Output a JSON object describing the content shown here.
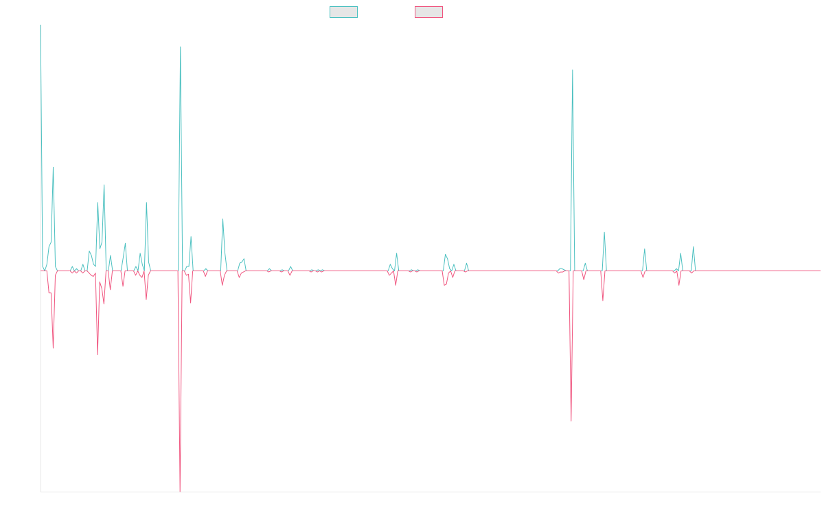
{
  "chart_data": {
    "type": "line",
    "title": "",
    "xlabel": "",
    "ylabel": "",
    "ylim": [
      -1,
      1.115
    ],
    "grid": false,
    "legend": "top-center",
    "series": [
      {
        "label": "",
        "color": "#4bc0c0",
        "fill": "#e6e6e6",
        "values": [
          1.115,
          0.02,
          0,
          0.03,
          0.11,
          0.13,
          0.47,
          0.02,
          0,
          0,
          0,
          0,
          0,
          0,
          0,
          0.02,
          0,
          0.01,
          0,
          0,
          0.03,
          0,
          0,
          0.09,
          0.07,
          0.03,
          0.02,
          0.31,
          0.1,
          0.13,
          0.39,
          0,
          0,
          0.07,
          0,
          0,
          0,
          0,
          0,
          0.06,
          0.125,
          0,
          0,
          0,
          0,
          0.02,
          0,
          0.08,
          0.03,
          0,
          0.31,
          0.04,
          0,
          0,
          0,
          0,
          0,
          0,
          0,
          0,
          0,
          0,
          0,
          0,
          0,
          0,
          1.015,
          0,
          0,
          0.02,
          0.02,
          0.155,
          0,
          0,
          0,
          0,
          0,
          0,
          0.01,
          0,
          0,
          0,
          0,
          0,
          0,
          0,
          0.235,
          0.08,
          0,
          0,
          0,
          0,
          0,
          0,
          0.035,
          0.04,
          0.055,
          0,
          0,
          0,
          0,
          0,
          0,
          0,
          0,
          0,
          0,
          0,
          0.01,
          0,
          0,
          0,
          0,
          0,
          0.005,
          0,
          0,
          0,
          0.02,
          0,
          0,
          0,
          0,
          0,
          0,
          0,
          0,
          0,
          0.005,
          0,
          0,
          0.005,
          0,
          0.005,
          0,
          0,
          0,
          0,
          0,
          0,
          0,
          0,
          0,
          0,
          0,
          0,
          0,
          0,
          0,
          0,
          0,
          0,
          0,
          0,
          0,
          0,
          0,
          0,
          0,
          0,
          0,
          0,
          0,
          0,
          0,
          0.03,
          0.01,
          0,
          0.08,
          0,
          0,
          0,
          0,
          0,
          0,
          0.005,
          0,
          0,
          0.005,
          0,
          0,
          0,
          0,
          0,
          0,
          0,
          0,
          0,
          0,
          0,
          0,
          0.075,
          0.055,
          0.01,
          0,
          0.03,
          0,
          0,
          0,
          0,
          0,
          0.035,
          0,
          0,
          0,
          0,
          0,
          0,
          0,
          0,
          0,
          0,
          0,
          0,
          0,
          0,
          0,
          0,
          0,
          0,
          0,
          0,
          0,
          0,
          0,
          0,
          0,
          0,
          0,
          0,
          0,
          0,
          0,
          0,
          0,
          0,
          0,
          0,
          0,
          0,
          0,
          0,
          0,
          0,
          0,
          0.01,
          0.01,
          0.005,
          0,
          0,
          0,
          0.91,
          0,
          0,
          0,
          0,
          0,
          0.035,
          0,
          0,
          0,
          0,
          0,
          0,
          0,
          0,
          0.175,
          0,
          0,
          0,
          0,
          0,
          0,
          0,
          0,
          0,
          0,
          0,
          0,
          0,
          0,
          0,
          0,
          0,
          0,
          0.1,
          0,
          0,
          0,
          0,
          0,
          0,
          0,
          0,
          0,
          0,
          0,
          0,
          0,
          0,
          0.01,
          0,
          0.08,
          0,
          0,
          0,
          0,
          0,
          0.11,
          0,
          0,
          0,
          0,
          0,
          0,
          0,
          0,
          0,
          0,
          0,
          0,
          0,
          0,
          0,
          0,
          0,
          0,
          0,
          0,
          0,
          0,
          0,
          0,
          0,
          0,
          0,
          0,
          0,
          0,
          0,
          0,
          0,
          0,
          0,
          0,
          0,
          0,
          0,
          0,
          0,
          0,
          0,
          0,
          0,
          0,
          0,
          0,
          0,
          0,
          0,
          0,
          0,
          0,
          0,
          0,
          0,
          0,
          0,
          0
        ]
      },
      {
        "label": "",
        "color": "#f0557f",
        "fill": "#e6e6e6",
        "values": [
          0,
          0,
          0,
          0,
          -0.1,
          -0.1,
          -0.35,
          -0.02,
          0,
          0,
          0,
          0,
          0,
          0,
          0,
          -0.01,
          0,
          -0.01,
          0,
          0,
          -0.01,
          0,
          0,
          -0.01,
          -0.02,
          -0.025,
          -0.01,
          -0.38,
          -0.05,
          -0.08,
          -0.15,
          0,
          0,
          -0.085,
          0,
          0,
          0,
          0,
          0,
          -0.07,
          0,
          0,
          0,
          0,
          0,
          -0.02,
          0,
          -0.02,
          -0.03,
          0,
          -0.13,
          -0.02,
          0,
          0,
          0,
          0,
          0,
          0,
          0,
          0,
          0,
          0,
          0,
          0,
          0,
          0,
          -1,
          0,
          0,
          -0.02,
          -0.015,
          -0.145,
          0,
          0,
          0,
          0,
          0,
          0,
          -0.025,
          0,
          0,
          0,
          0,
          0,
          0,
          0,
          -0.065,
          -0.02,
          0,
          0,
          0,
          0,
          0,
          0,
          -0.03,
          -0.01,
          -0.005,
          0,
          0,
          0,
          0,
          0,
          0,
          0,
          0,
          0,
          0,
          0,
          -0.005,
          0,
          0,
          0,
          0,
          0,
          -0.005,
          0,
          0,
          0,
          -0.02,
          0,
          0,
          0,
          0,
          0,
          0,
          0,
          0,
          0,
          -0.005,
          0,
          0,
          -0.005,
          0,
          -0.005,
          0,
          0,
          0,
          0,
          0,
          0,
          0,
          0,
          0,
          0,
          0,
          0,
          0,
          0,
          0,
          0,
          0,
          0,
          0,
          0,
          0,
          0,
          0,
          0,
          0,
          0,
          0,
          0,
          0,
          0,
          0,
          -0.02,
          -0.01,
          0,
          -0.065,
          0,
          0,
          0,
          0,
          0,
          0,
          -0.005,
          0,
          0,
          -0.005,
          0,
          0,
          0,
          0,
          0,
          0,
          0,
          0,
          0,
          0,
          0,
          0,
          -0.065,
          -0.06,
          -0.01,
          0,
          -0.03,
          0,
          0,
          0,
          0,
          0,
          -0.005,
          0,
          0,
          0,
          0,
          0,
          0,
          0,
          0,
          0,
          0,
          0,
          0,
          0,
          0,
          0,
          0,
          0,
          0,
          0,
          0,
          0,
          0,
          0,
          0,
          0,
          0,
          0,
          0,
          0,
          0,
          0,
          0,
          0,
          0,
          0,
          0,
          0,
          0,
          0,
          0,
          0,
          0,
          0,
          -0.01,
          -0.005,
          -0.005,
          0,
          0,
          0,
          -0.68,
          0,
          0,
          0,
          0,
          0,
          -0.04,
          0,
          0,
          0,
          0,
          0,
          0,
          0,
          0,
          -0.135,
          0,
          0,
          0,
          0,
          0,
          0,
          0,
          0,
          0,
          0,
          0,
          0,
          0,
          0,
          0,
          0,
          0,
          0,
          -0.03,
          0,
          0,
          0,
          0,
          0,
          0,
          0,
          0,
          0,
          0,
          0,
          0,
          0,
          0,
          -0.01,
          0,
          -0.065,
          0,
          0,
          0,
          0,
          0,
          -0.01,
          0,
          0,
          0,
          0,
          0,
          0,
          0,
          0,
          0,
          0,
          0,
          0,
          0,
          0,
          0,
          0,
          0,
          0,
          0,
          0,
          0,
          0,
          0,
          0,
          0,
          0,
          0,
          0,
          0,
          0,
          0,
          0,
          0,
          0,
          0,
          0,
          0,
          0,
          0,
          0,
          0,
          0,
          0,
          0,
          0,
          0,
          0,
          0,
          0,
          0,
          0,
          0,
          0,
          0,
          0,
          0,
          0,
          0,
          0,
          0,
          0
        ]
      }
    ]
  }
}
